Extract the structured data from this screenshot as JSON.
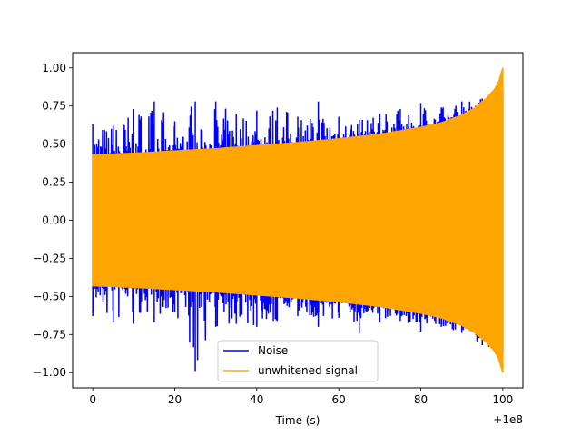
{
  "chart_data": {
    "type": "line",
    "title": "",
    "xlabel": "Time (s)",
    "ylabel": "",
    "x_offset_label": "+1e8",
    "xlim": [
      -4.9,
      104.9
    ],
    "ylim": [
      -1.1,
      1.1
    ],
    "x_ticks": [
      0,
      20,
      40,
      60,
      80,
      100
    ],
    "x_tick_labels": [
      "0",
      "20",
      "40",
      "60",
      "80",
      "100"
    ],
    "y_ticks": [
      1.0,
      0.75,
      0.5,
      0.25,
      0.0,
      -0.25,
      -0.5,
      -0.75,
      -1.0
    ],
    "y_tick_labels": [
      "1.00",
      "0.75",
      "0.50",
      "0.25",
      "0.00",
      "−0.25",
      "−0.50",
      "−0.75",
      "−1.00"
    ],
    "grid": false,
    "legend_position": "bottom-center",
    "series": [
      {
        "name": "Noise",
        "color": "#0000ff",
        "x": [
          0,
          5,
          10,
          15,
          20,
          25,
          30,
          35,
          40,
          45,
          50,
          55,
          60,
          65,
          70,
          75,
          80,
          85,
          90,
          95,
          100
        ],
        "upper_peaks": [
          0.63,
          0.62,
          0.73,
          0.78,
          0.65,
          0.78,
          0.78,
          0.7,
          0.72,
          0.74,
          0.68,
          0.78,
          0.68,
          0.66,
          0.7,
          0.73,
          0.77,
          0.74,
          0.78,
          0.8,
          0.86
        ],
        "lower_peaks": [
          -0.63,
          -0.67,
          -0.68,
          -0.67,
          -0.6,
          -0.99,
          -0.7,
          -0.68,
          -0.7,
          -0.66,
          -0.63,
          -0.7,
          -0.64,
          -0.74,
          -0.67,
          -0.66,
          -0.73,
          -0.7,
          -0.74,
          -0.82,
          -0.86
        ]
      },
      {
        "name": "unwhitened signal",
        "color": "#ffa500",
        "x": [
          0,
          10,
          20,
          30,
          40,
          50,
          60,
          70,
          80,
          85,
          90,
          93,
          96,
          98,
          99,
          100
        ],
        "amplitude_envelope": [
          0.43,
          0.44,
          0.455,
          0.47,
          0.49,
          0.51,
          0.535,
          0.565,
          0.61,
          0.64,
          0.69,
          0.735,
          0.8,
          0.86,
          0.91,
          1.0
        ]
      }
    ]
  }
}
